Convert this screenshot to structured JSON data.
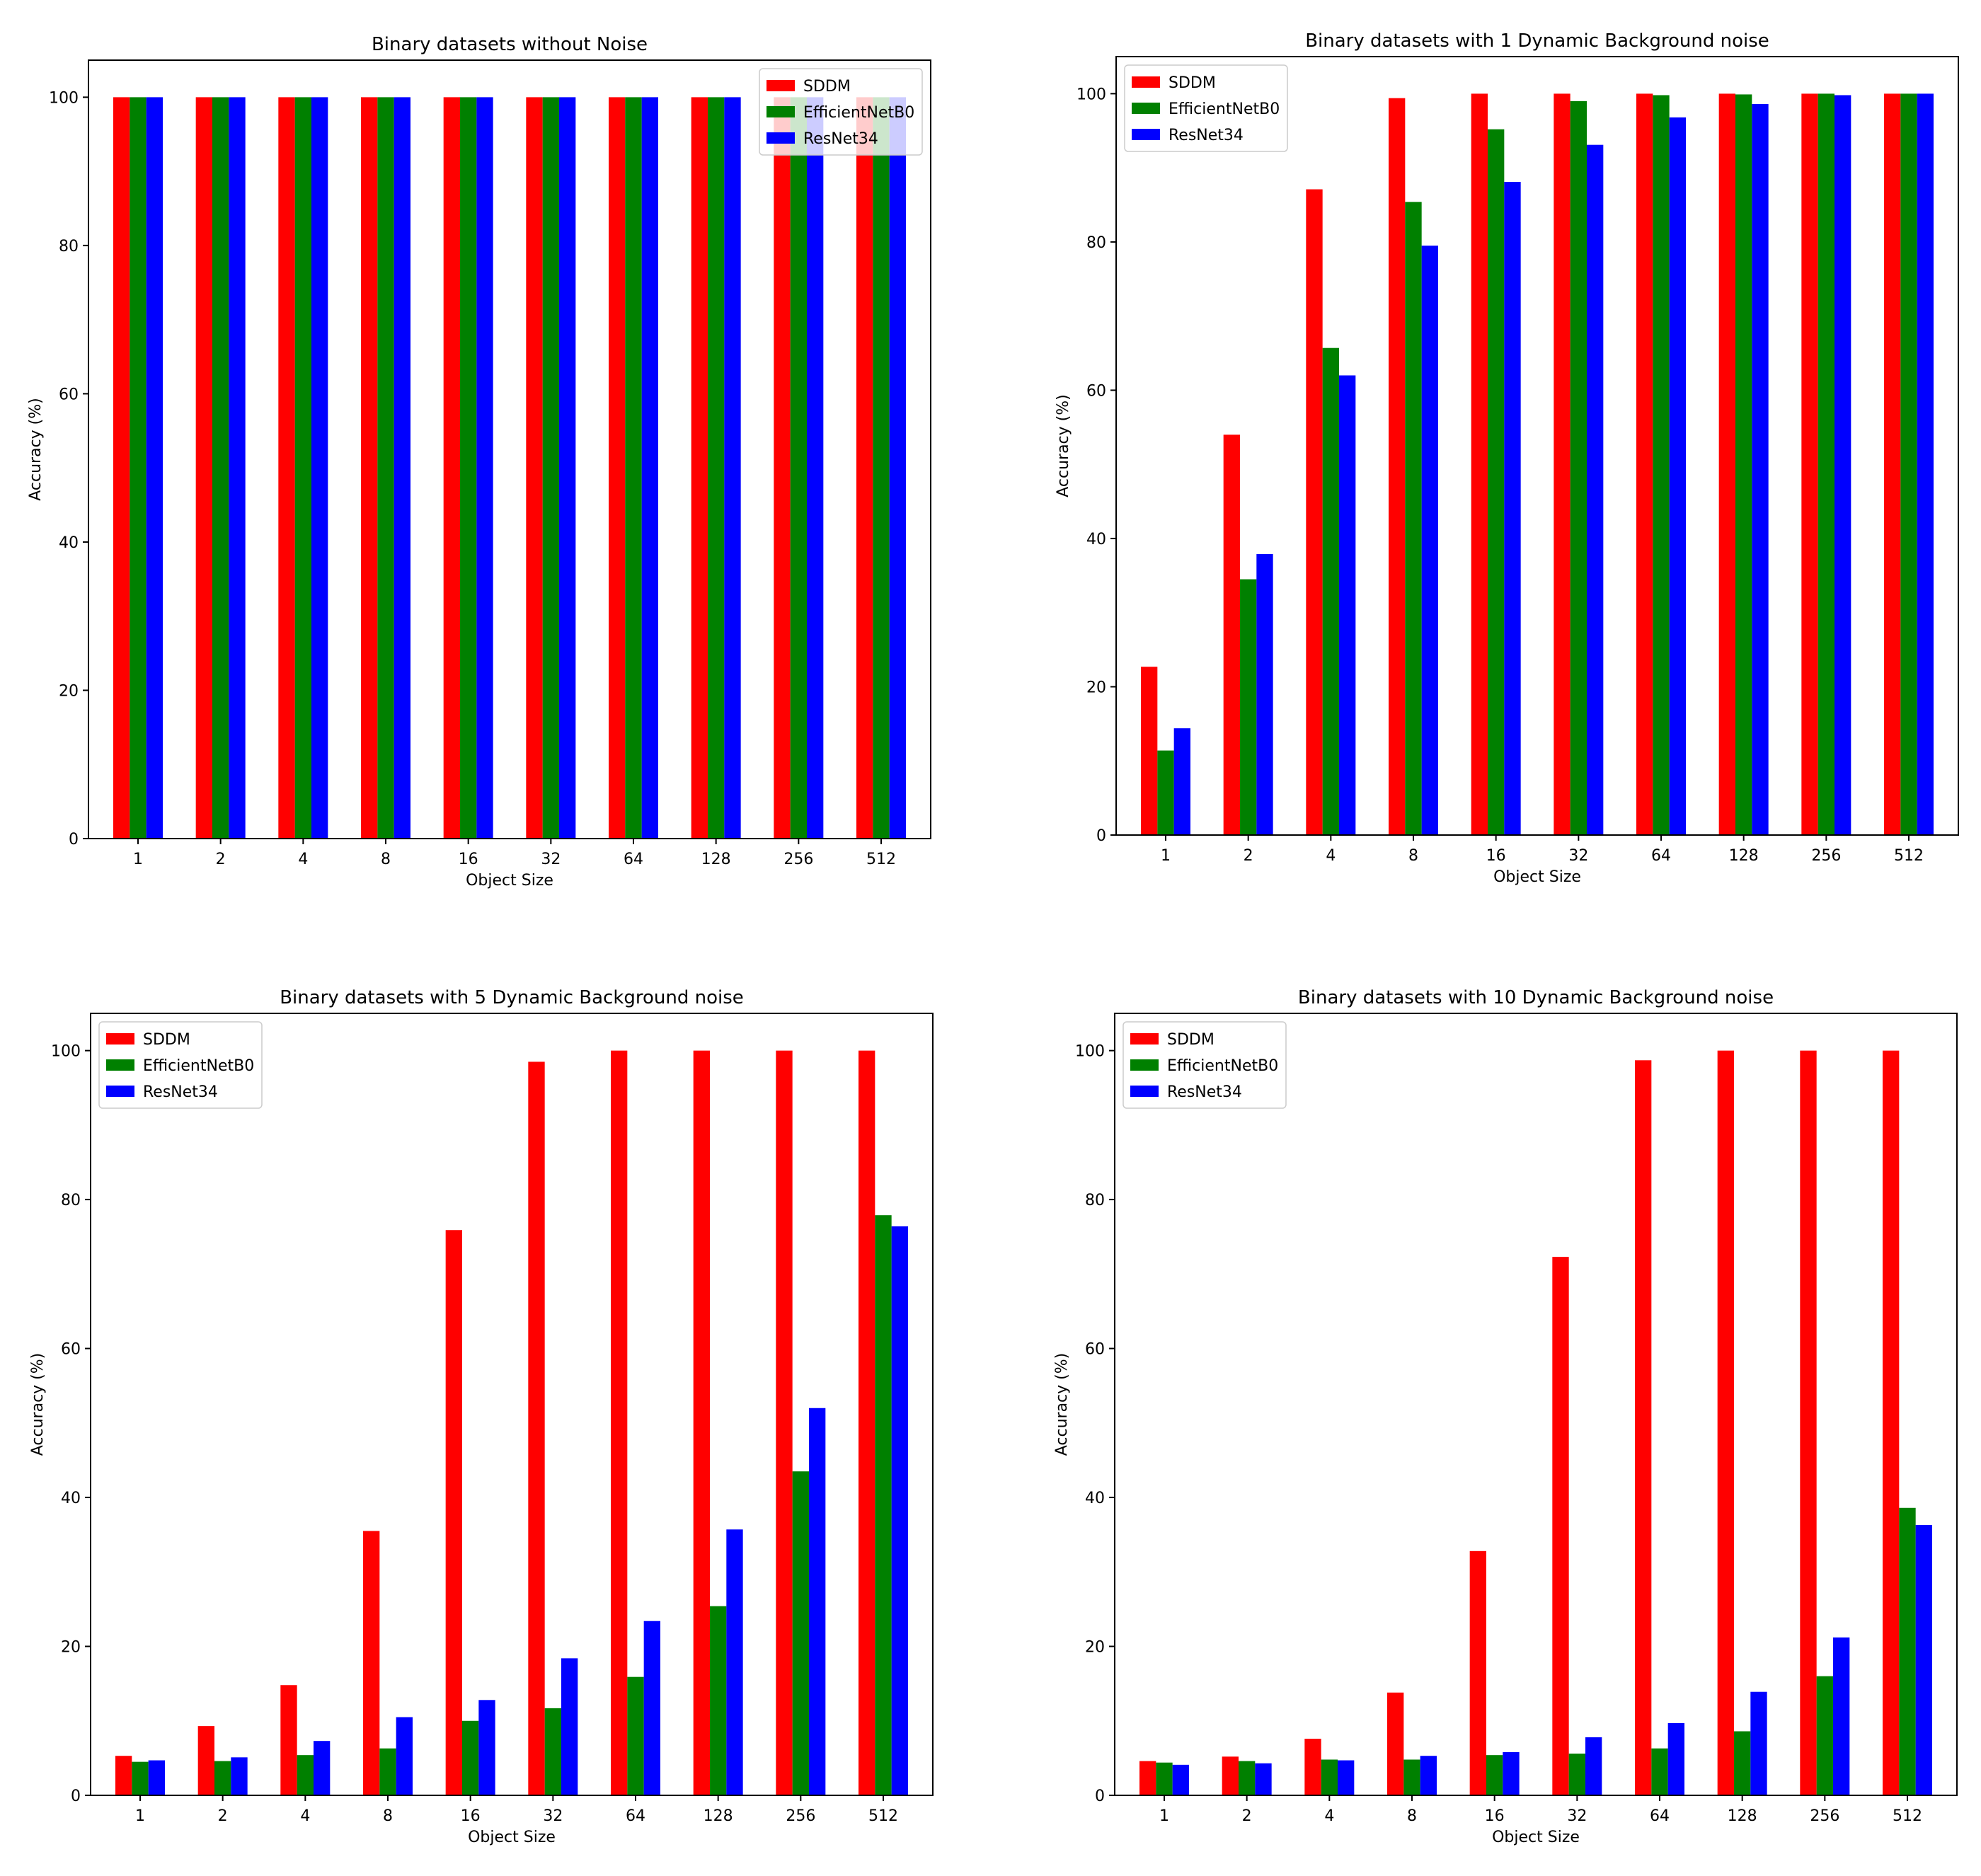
{
  "chart_data": [
    {
      "type": "bar",
      "title": "Binary datasets without Noise",
      "xlabel": "Object Size",
      "ylabel": "Accuracy (%)",
      "ylim": [
        0,
        105
      ],
      "yticks": [
        0,
        20,
        40,
        60,
        80,
        100
      ],
      "legend": "top-right",
      "categories": [
        "1",
        "2",
        "4",
        "8",
        "16",
        "32",
        "64",
        "128",
        "256",
        "512"
      ],
      "series": [
        {
          "name": "SDDM",
          "color": "#ff0000",
          "values": [
            100,
            100,
            100,
            100,
            100,
            100,
            100,
            100,
            100,
            100
          ]
        },
        {
          "name": "EfficientNetB0",
          "color": "#008000",
          "values": [
            100,
            100,
            100,
            100,
            100,
            100,
            100,
            100,
            100,
            100
          ]
        },
        {
          "name": "ResNet34",
          "color": "#0000ff",
          "values": [
            100,
            100,
            100,
            100,
            100,
            100,
            100,
            100,
            100,
            100
          ]
        }
      ]
    },
    {
      "type": "bar",
      "title": "Binary datasets with 1 Dynamic Background noise",
      "xlabel": "Object Size",
      "ylabel": "Accuracy (%)",
      "ylim": [
        0,
        105
      ],
      "yticks": [
        0,
        20,
        40,
        60,
        80,
        100
      ],
      "legend": "top-left",
      "categories": [
        "1",
        "2",
        "4",
        "8",
        "16",
        "32",
        "64",
        "128",
        "256",
        "512"
      ],
      "series": [
        {
          "name": "SDDM",
          "color": "#ff0000",
          "values": [
            22.7,
            54,
            87.1,
            99.4,
            100,
            100,
            100,
            100,
            100,
            100
          ]
        },
        {
          "name": "EfficientNetB0",
          "color": "#008000",
          "values": [
            11.4,
            34.5,
            65.7,
            85.4,
            95.2,
            99,
            99.8,
            99.9,
            100,
            100
          ]
        },
        {
          "name": "ResNet34",
          "color": "#0000ff",
          "values": [
            14.4,
            37.9,
            62,
            79.5,
            88.1,
            93.1,
            96.8,
            98.6,
            99.8,
            100
          ]
        }
      ]
    },
    {
      "type": "bar",
      "title": "Binary datasets with 5 Dynamic Background noise",
      "xlabel": "Object Size",
      "ylabel": "Accuracy (%)",
      "ylim": [
        0,
        105
      ],
      "yticks": [
        0,
        20,
        40,
        60,
        80,
        100
      ],
      "legend": "top-left",
      "categories": [
        "1",
        "2",
        "4",
        "8",
        "16",
        "32",
        "64",
        "128",
        "256",
        "512"
      ],
      "series": [
        {
          "name": "SDDM",
          "color": "#ff0000",
          "values": [
            5.3,
            9.3,
            14.8,
            35.5,
            75.9,
            98.5,
            100,
            100,
            100,
            100
          ]
        },
        {
          "name": "EfficientNetB0",
          "color": "#008000",
          "values": [
            4.5,
            4.6,
            5.4,
            6.3,
            10,
            11.7,
            15.9,
            25.4,
            43.5,
            77.9
          ]
        },
        {
          "name": "ResNet34",
          "color": "#0000ff",
          "values": [
            4.7,
            5.1,
            7.3,
            10.5,
            12.8,
            18.4,
            23.4,
            35.7,
            52,
            76.4
          ]
        }
      ]
    },
    {
      "type": "bar",
      "title": "Binary datasets with 10 Dynamic Background noise",
      "xlabel": "Object Size",
      "ylabel": "Accuracy (%)",
      "ylim": [
        0,
        105
      ],
      "yticks": [
        0,
        20,
        40,
        60,
        80,
        100
      ],
      "legend": "top-left",
      "categories": [
        "1",
        "2",
        "4",
        "8",
        "16",
        "32",
        "64",
        "128",
        "256",
        "512"
      ],
      "series": [
        {
          "name": "SDDM",
          "color": "#ff0000",
          "values": [
            4.6,
            5.2,
            7.6,
            13.8,
            32.8,
            72.3,
            98.7,
            100,
            100,
            100
          ]
        },
        {
          "name": "EfficientNetB0",
          "color": "#008000",
          "values": [
            4.4,
            4.6,
            4.8,
            4.8,
            5.4,
            5.6,
            6.3,
            8.6,
            16,
            38.6
          ]
        },
        {
          "name": "ResNet34",
          "color": "#0000ff",
          "values": [
            4.1,
            4.3,
            4.7,
            5.3,
            5.8,
            7.8,
            9.7,
            13.9,
            21.2,
            36.3
          ]
        }
      ]
    }
  ]
}
